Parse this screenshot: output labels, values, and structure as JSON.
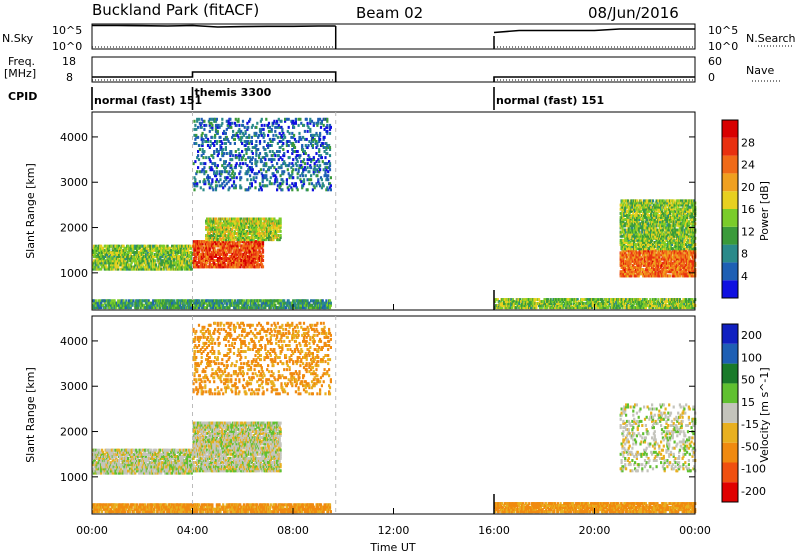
{
  "header": {
    "station": "Buckland Park (fitACF)",
    "beam": "Beam 02",
    "date": "08/Jun/2016"
  },
  "panel_labels": {
    "nsky": "N.Sky",
    "nsearch": "N.Search",
    "freq": "Freq.",
    "freq_unit": "[MHz]",
    "nave": "Nave",
    "cpid": "CPID",
    "noise_ticks_left": [
      "10^5",
      "10^0"
    ],
    "noise_ticks_right": [
      "10^5",
      "10^0"
    ],
    "freq_ticks": [
      "18",
      "8"
    ],
    "nave_ticks": [
      "60",
      "0"
    ]
  },
  "cpid_segments": [
    {
      "label": "normal (fast) 151",
      "start_h": 0.0,
      "end_h": 4.0
    },
    {
      "label": "themis 3300",
      "start_h": 4.0,
      "end_h": 9.7
    },
    {
      "label": "normal (fast) 151",
      "start_h": 16.0,
      "end_h": 24.0
    }
  ],
  "x_axis": {
    "title": "Time UT",
    "ticks": [
      "00:00",
      "04:00",
      "08:00",
      "12:00",
      "16:00",
      "20:00",
      "00:00"
    ],
    "range_h": [
      0,
      24
    ]
  },
  "colors": {
    "power_scale": [
      "#1010e0",
      "#1e5fb4",
      "#2a8a8a",
      "#3a9a3a",
      "#7acc2a",
      "#e8d020",
      "#f0a020",
      "#f06a18",
      "#e83010",
      "#d80000"
    ],
    "velocity_scale": [
      "#1020c0",
      "#1e5fb4",
      "#1a7a2a",
      "#60c030",
      "#c4c4bc",
      "#e8b020",
      "#f08a10",
      "#f05010",
      "#e00000"
    ]
  },
  "chart_data": [
    {
      "type": "line",
      "title": "N.Sky / N.Search",
      "y_scale": "log",
      "ylim": [
        1,
        100000
      ],
      "series": [
        {
          "name": "N.Sky",
          "x": [
            0,
            1,
            2,
            3,
            4,
            5,
            6,
            7,
            8,
            9,
            9.7,
            16,
            17,
            18,
            19,
            20,
            21,
            22,
            23,
            24
          ],
          "y": [
            50000,
            50000,
            45000,
            40000,
            50000,
            25000,
            30000,
            35000,
            35000,
            40000,
            40000,
            2000,
            5000,
            5000,
            5000,
            5000,
            10000,
            10000,
            10000,
            10000
          ]
        },
        {
          "name": "N.Search",
          "x": [
            0,
            9.7,
            16,
            24
          ],
          "y": [
            1,
            1,
            1,
            1
          ]
        }
      ]
    },
    {
      "type": "line",
      "title": "Freq. / Nave",
      "ylim": [
        8,
        18
      ],
      "series": [
        {
          "name": "Freq.",
          "x": [
            0,
            4,
            4,
            9.7,
            16,
            24
          ],
          "y": [
            10,
            10,
            12,
            12,
            10,
            10
          ]
        },
        {
          "name": "Nave",
          "x": [
            0,
            9.7,
            16,
            24
          ],
          "y": [
            0,
            0,
            0,
            0
          ]
        }
      ]
    },
    {
      "type": "heatmap",
      "title": "Power",
      "colorbar_label": "Power [dB]",
      "colorbar_ticks": [
        4,
        8,
        12,
        16,
        20,
        24,
        28
      ],
      "zlim": [
        0,
        32
      ],
      "ylabel": "Slant Range [km]",
      "yticks": [
        1000,
        2000,
        3000,
        4000
      ],
      "ylim": [
        180,
        4550
      ],
      "xlim": [
        0,
        24
      ],
      "regions": [
        {
          "t0": 0,
          "t1": 4,
          "r0": 1050,
          "r1": 1600,
          "value": 14
        },
        {
          "t0": 0,
          "t1": 9.5,
          "r0": 200,
          "r1": 400,
          "value": 10
        },
        {
          "t0": 4,
          "t1": 6.8,
          "r0": 1100,
          "r1": 1700,
          "value": 26
        },
        {
          "t0": 4.5,
          "t1": 7.5,
          "r0": 1700,
          "r1": 2200,
          "value": 16
        },
        {
          "t0": 4,
          "t1": 9.5,
          "r0": 2800,
          "r1": 4400,
          "value": 6
        },
        {
          "t0": 16,
          "t1": 24,
          "r0": 200,
          "r1": 420,
          "value": 14
        },
        {
          "t0": 21,
          "t1": 24,
          "r0": 900,
          "r1": 1500,
          "value": 24
        },
        {
          "t0": 21,
          "t1": 24,
          "r0": 1500,
          "r1": 2600,
          "value": 14
        }
      ]
    },
    {
      "type": "heatmap",
      "title": "Velocity",
      "colorbar_label": "Velocity [m s^-1]",
      "colorbar_ticks": [
        200,
        100,
        50,
        15,
        -15,
        -50,
        -100,
        -200
      ],
      "zlim": [
        -250,
        250
      ],
      "ylabel": "Slant Range [km]",
      "yticks": [
        1000,
        2000,
        3000,
        4000
      ],
      "ylim": [
        180,
        4550
      ],
      "xlim": [
        0,
        24
      ],
      "regions": [
        {
          "t0": 0,
          "t1": 4,
          "r0": 1050,
          "r1": 1600,
          "value": 0
        },
        {
          "t0": 0,
          "t1": 9.5,
          "r0": 200,
          "r1": 400,
          "value": -60
        },
        {
          "t0": 4,
          "t1": 7.5,
          "r0": 1100,
          "r1": 2200,
          "value": 0
        },
        {
          "t0": 4,
          "t1": 9.5,
          "r0": 2800,
          "r1": 4400,
          "value": -60
        },
        {
          "t0": 16,
          "t1": 24,
          "r0": 200,
          "r1": 420,
          "value": -60
        },
        {
          "t0": 21,
          "t1": 24,
          "r0": 1100,
          "r1": 2600,
          "value": 0
        }
      ]
    }
  ]
}
